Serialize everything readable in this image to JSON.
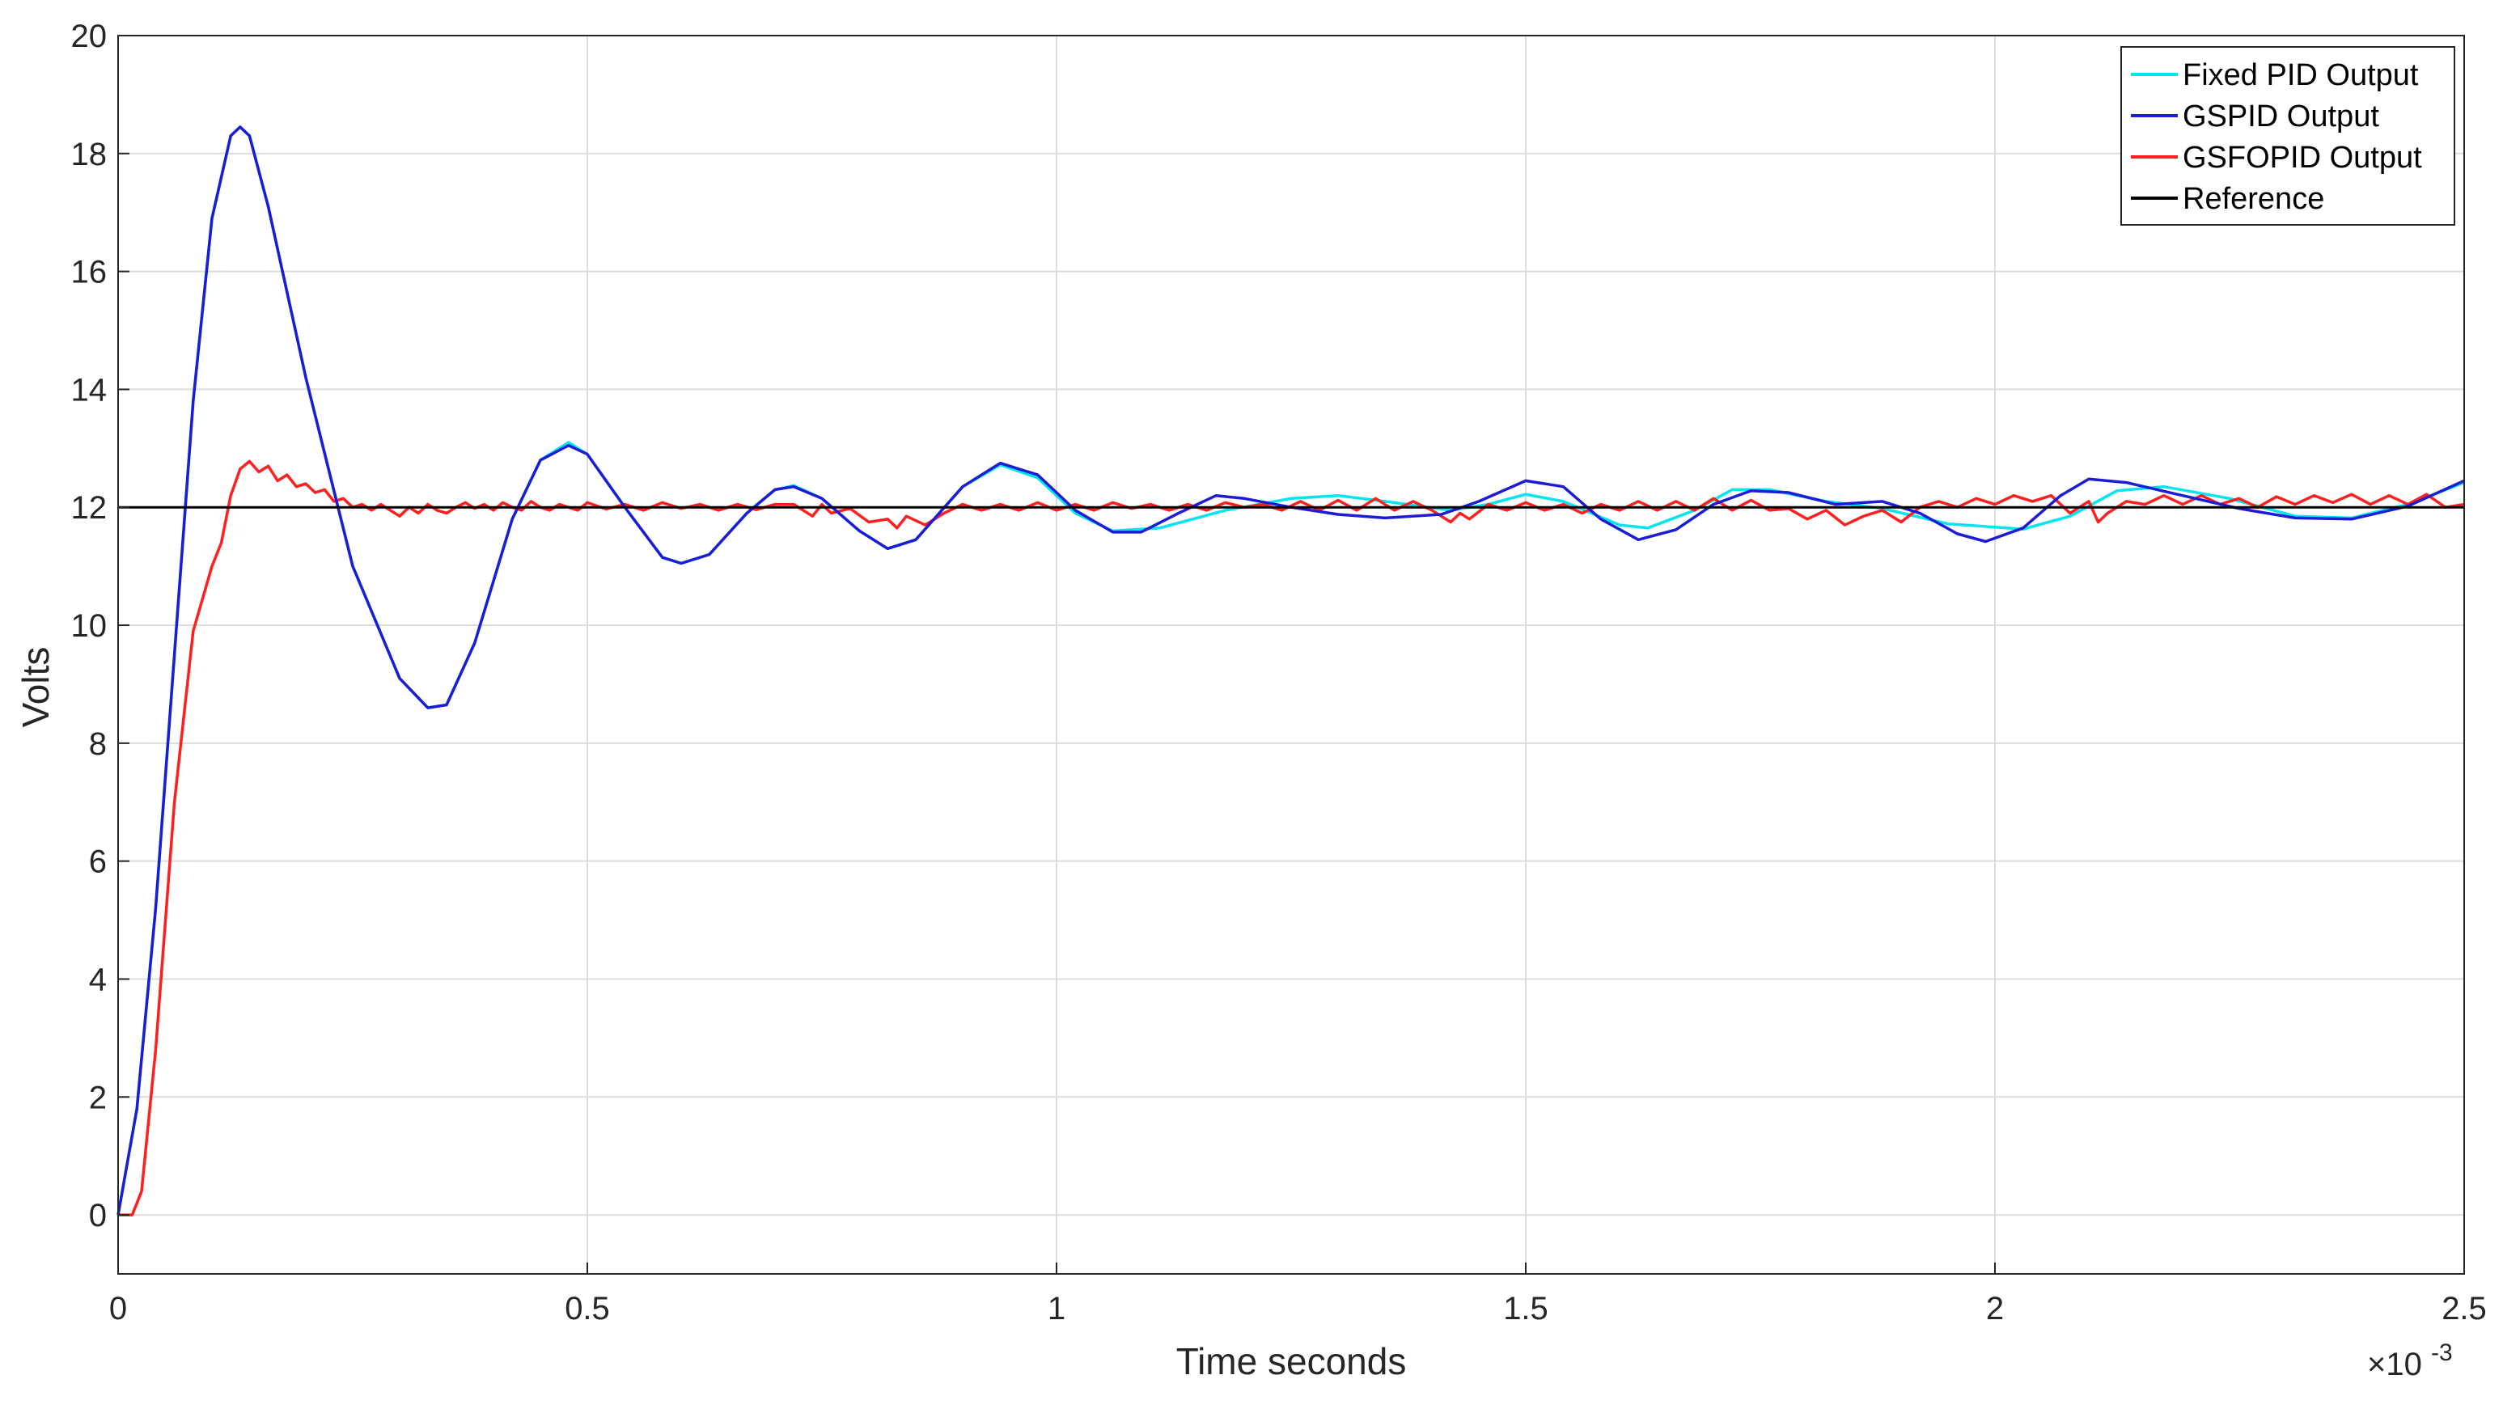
{
  "chart_data": {
    "type": "line",
    "title": "",
    "xlabel": "Time seconds",
    "ylabel": "Volts",
    "x_exponent_label": "×10",
    "x_exponent_power": "-3",
    "xlim": [
      0,
      0.0025
    ],
    "ylim": [
      -1,
      20
    ],
    "x_ticks": [
      0,
      0.0005,
      0.001,
      0.0015,
      0.002,
      0.0025
    ],
    "x_tick_labels": [
      "0",
      "0.5",
      "1",
      "1.5",
      "2",
      "2.5"
    ],
    "y_ticks": [
      0,
      2,
      4,
      6,
      8,
      10,
      12,
      14,
      16,
      18,
      20
    ],
    "y_tick_labels": [
      "0",
      "2",
      "4",
      "6",
      "8",
      "10",
      "12",
      "14",
      "16",
      "18",
      "20"
    ],
    "grid": true,
    "legend_position": "top-right",
    "series": [
      {
        "name": "Fixed PID Output",
        "color": "#00e5ee",
        "points": [
          [
            0,
            0
          ],
          [
            2e-05,
            1.8
          ],
          [
            4e-05,
            5.2
          ],
          [
            6e-05,
            9.5
          ],
          [
            8e-05,
            13.8
          ],
          [
            0.0001,
            16.9
          ],
          [
            0.00012,
            18.3
          ],
          [
            0.00013,
            18.45
          ],
          [
            0.00014,
            18.3
          ],
          [
            0.00016,
            17.1
          ],
          [
            0.0002,
            14.2
          ],
          [
            0.00025,
            11.0
          ],
          [
            0.0003,
            9.1
          ],
          [
            0.00033,
            8.6
          ],
          [
            0.00035,
            8.65
          ],
          [
            0.00038,
            9.7
          ],
          [
            0.00042,
            11.8
          ],
          [
            0.00045,
            12.8
          ],
          [
            0.00048,
            13.1
          ],
          [
            0.0005,
            12.9
          ],
          [
            0.00054,
            12.0
          ],
          [
            0.00058,
            11.15
          ],
          [
            0.0006,
            11.05
          ],
          [
            0.00063,
            11.2
          ],
          [
            0.00067,
            11.9
          ],
          [
            0.0007,
            12.3
          ],
          [
            0.00072,
            12.37
          ],
          [
            0.00075,
            12.15
          ],
          [
            0.00079,
            11.6
          ],
          [
            0.00082,
            11.3
          ],
          [
            0.00085,
            11.45
          ],
          [
            0.0009,
            12.35
          ],
          [
            0.00094,
            12.72
          ],
          [
            0.00098,
            12.5
          ],
          [
            0.00102,
            11.9
          ],
          [
            0.00106,
            11.6
          ],
          [
            0.00111,
            11.65
          ],
          [
            0.00118,
            11.95
          ],
          [
            0.00125,
            12.15
          ],
          [
            0.0013,
            12.2
          ],
          [
            0.00135,
            12.1
          ],
          [
            0.00142,
            11.95
          ],
          [
            0.00146,
            12.05
          ],
          [
            0.0015,
            12.22
          ],
          [
            0.00154,
            12.1
          ],
          [
            0.0016,
            11.7
          ],
          [
            0.00163,
            11.65
          ],
          [
            0.00168,
            11.95
          ],
          [
            0.00172,
            12.3
          ],
          [
            0.00176,
            12.3
          ],
          [
            0.00182,
            12.1
          ],
          [
            0.00188,
            11.98
          ],
          [
            0.00195,
            11.72
          ],
          [
            0.00203,
            11.63
          ],
          [
            0.00208,
            11.85
          ],
          [
            0.00213,
            12.28
          ],
          [
            0.00218,
            12.35
          ],
          [
            0.00225,
            12.15
          ],
          [
            0.00232,
            11.85
          ],
          [
            0.00238,
            11.82
          ],
          [
            0.00244,
            12.05
          ],
          [
            0.0025,
            12.42
          ]
        ]
      },
      {
        "name": "GSPID Output",
        "color": "#1c1cd6",
        "points": [
          [
            0,
            0
          ],
          [
            2e-05,
            1.8
          ],
          [
            4e-05,
            5.2
          ],
          [
            6e-05,
            9.5
          ],
          [
            8e-05,
            13.8
          ],
          [
            0.0001,
            16.9
          ],
          [
            0.00012,
            18.3
          ],
          [
            0.00013,
            18.45
          ],
          [
            0.00014,
            18.3
          ],
          [
            0.00016,
            17.1
          ],
          [
            0.0002,
            14.2
          ],
          [
            0.00025,
            11.0
          ],
          [
            0.0003,
            9.1
          ],
          [
            0.00033,
            8.6
          ],
          [
            0.00035,
            8.65
          ],
          [
            0.00038,
            9.7
          ],
          [
            0.00042,
            11.8
          ],
          [
            0.00045,
            12.8
          ],
          [
            0.00048,
            13.05
          ],
          [
            0.0005,
            12.9
          ],
          [
            0.00054,
            12.0
          ],
          [
            0.00058,
            11.15
          ],
          [
            0.0006,
            11.05
          ],
          [
            0.00063,
            11.2
          ],
          [
            0.00067,
            11.9
          ],
          [
            0.0007,
            12.3
          ],
          [
            0.00072,
            12.35
          ],
          [
            0.00075,
            12.15
          ],
          [
            0.00079,
            11.6
          ],
          [
            0.00082,
            11.3
          ],
          [
            0.00085,
            11.45
          ],
          [
            0.0009,
            12.35
          ],
          [
            0.00094,
            12.75
          ],
          [
            0.00098,
            12.55
          ],
          [
            0.00102,
            11.95
          ],
          [
            0.00106,
            11.58
          ],
          [
            0.00109,
            11.58
          ],
          [
            0.00113,
            11.9
          ],
          [
            0.00117,
            12.2
          ],
          [
            0.0012,
            12.15
          ],
          [
            0.00125,
            12.0
          ],
          [
            0.0013,
            11.88
          ],
          [
            0.00135,
            11.82
          ],
          [
            0.00141,
            11.88
          ],
          [
            0.00145,
            12.1
          ],
          [
            0.0015,
            12.45
          ],
          [
            0.00154,
            12.35
          ],
          [
            0.00158,
            11.8
          ],
          [
            0.00162,
            11.45
          ],
          [
            0.00166,
            11.62
          ],
          [
            0.0017,
            12.05
          ],
          [
            0.00174,
            12.28
          ],
          [
            0.00178,
            12.25
          ],
          [
            0.00183,
            12.05
          ],
          [
            0.00188,
            12.1
          ],
          [
            0.00192,
            11.9
          ],
          [
            0.00196,
            11.55
          ],
          [
            0.00199,
            11.42
          ],
          [
            0.00203,
            11.65
          ],
          [
            0.00207,
            12.2
          ],
          [
            0.0021,
            12.48
          ],
          [
            0.00214,
            12.42
          ],
          [
            0.0022,
            12.2
          ],
          [
            0.00226,
            11.98
          ],
          [
            0.00232,
            11.82
          ],
          [
            0.00238,
            11.8
          ],
          [
            0.00244,
            12.02
          ],
          [
            0.0025,
            12.45
          ]
        ]
      },
      {
        "name": "GSFOPID Output",
        "color": "#ff1f1f",
        "points": [
          [
            0,
            0
          ],
          [
            1.5e-05,
            0
          ],
          [
            2.5e-05,
            0.4
          ],
          [
            4e-05,
            2.8
          ],
          [
            6e-05,
            7.0
          ],
          [
            8e-05,
            9.9
          ],
          [
            0.0001,
            11.0
          ],
          [
            0.00011,
            11.4
          ],
          [
            0.00012,
            12.2
          ],
          [
            0.00013,
            12.65
          ],
          [
            0.00014,
            12.78
          ],
          [
            0.00015,
            12.6
          ],
          [
            0.00016,
            12.7
          ],
          [
            0.00017,
            12.45
          ],
          [
            0.00018,
            12.55
          ],
          [
            0.00019,
            12.35
          ],
          [
            0.0002,
            12.4
          ],
          [
            0.00021,
            12.25
          ],
          [
            0.00022,
            12.3
          ],
          [
            0.00023,
            12.1
          ],
          [
            0.00024,
            12.15
          ],
          [
            0.00025,
            12.0
          ],
          [
            0.00026,
            12.05
          ],
          [
            0.00027,
            11.95
          ],
          [
            0.00028,
            12.05
          ],
          [
            0.00029,
            11.95
          ],
          [
            0.0003,
            11.85
          ],
          [
            0.00031,
            12.0
          ],
          [
            0.00032,
            11.9
          ],
          [
            0.00033,
            12.05
          ],
          [
            0.00034,
            11.95
          ],
          [
            0.00035,
            11.9
          ],
          [
            0.00036,
            12.0
          ],
          [
            0.00037,
            12.08
          ],
          [
            0.00038,
            11.98
          ],
          [
            0.00039,
            12.05
          ],
          [
            0.0004,
            11.95
          ],
          [
            0.00041,
            12.08
          ],
          [
            0.00042,
            12.0
          ],
          [
            0.00043,
            11.95
          ],
          [
            0.00044,
            12.1
          ],
          [
            0.00045,
            12.0
          ],
          [
            0.00046,
            11.95
          ],
          [
            0.00047,
            12.05
          ],
          [
            0.00048,
            12.0
          ],
          [
            0.00049,
            11.95
          ],
          [
            0.0005,
            12.08
          ],
          [
            0.00052,
            11.97
          ],
          [
            0.00054,
            12.05
          ],
          [
            0.00056,
            11.95
          ],
          [
            0.00058,
            12.08
          ],
          [
            0.0006,
            11.98
          ],
          [
            0.00062,
            12.05
          ],
          [
            0.00064,
            11.95
          ],
          [
            0.00066,
            12.05
          ],
          [
            0.00068,
            11.96
          ],
          [
            0.0007,
            12.05
          ],
          [
            0.00072,
            12.05
          ],
          [
            0.00074,
            11.85
          ],
          [
            0.00075,
            12.05
          ],
          [
            0.00076,
            11.9
          ],
          [
            0.00078,
            11.98
          ],
          [
            0.0008,
            11.75
          ],
          [
            0.00082,
            11.8
          ],
          [
            0.00083,
            11.65
          ],
          [
            0.00084,
            11.85
          ],
          [
            0.00086,
            11.7
          ],
          [
            0.00088,
            11.9
          ],
          [
            0.0009,
            12.05
          ],
          [
            0.00092,
            11.95
          ],
          [
            0.00094,
            12.05
          ],
          [
            0.00096,
            11.95
          ],
          [
            0.00098,
            12.08
          ],
          [
            0.001,
            11.95
          ],
          [
            0.00102,
            12.05
          ],
          [
            0.00104,
            11.95
          ],
          [
            0.00106,
            12.08
          ],
          [
            0.00108,
            11.98
          ],
          [
            0.0011,
            12.05
          ],
          [
            0.00112,
            11.95
          ],
          [
            0.00114,
            12.05
          ],
          [
            0.00116,
            11.95
          ],
          [
            0.00118,
            12.08
          ],
          [
            0.0012,
            12.0
          ],
          [
            0.00122,
            12.05
          ],
          [
            0.00124,
            11.95
          ],
          [
            0.00126,
            12.1
          ],
          [
            0.00128,
            11.95
          ],
          [
            0.0013,
            12.12
          ],
          [
            0.00132,
            11.95
          ],
          [
            0.00134,
            12.15
          ],
          [
            0.00136,
            11.95
          ],
          [
            0.00138,
            12.1
          ],
          [
            0.0014,
            11.95
          ],
          [
            0.00142,
            11.75
          ],
          [
            0.00143,
            11.9
          ],
          [
            0.00144,
            11.8
          ],
          [
            0.00146,
            12.05
          ],
          [
            0.00148,
            11.95
          ],
          [
            0.0015,
            12.08
          ],
          [
            0.00152,
            11.95
          ],
          [
            0.00154,
            12.05
          ],
          [
            0.00156,
            11.9
          ],
          [
            0.00158,
            12.05
          ],
          [
            0.0016,
            11.95
          ],
          [
            0.00162,
            12.1
          ],
          [
            0.00164,
            11.95
          ],
          [
            0.00166,
            12.1
          ],
          [
            0.00168,
            11.95
          ],
          [
            0.0017,
            12.15
          ],
          [
            0.00172,
            11.95
          ],
          [
            0.00174,
            12.12
          ],
          [
            0.00176,
            11.95
          ],
          [
            0.00178,
            11.98
          ],
          [
            0.0018,
            11.8
          ],
          [
            0.00182,
            11.95
          ],
          [
            0.00184,
            11.7
          ],
          [
            0.00186,
            11.85
          ],
          [
            0.00188,
            11.95
          ],
          [
            0.0019,
            11.75
          ],
          [
            0.00192,
            12.0
          ],
          [
            0.00194,
            12.1
          ],
          [
            0.00196,
            12.0
          ],
          [
            0.00198,
            12.15
          ],
          [
            0.002,
            12.05
          ],
          [
            0.00202,
            12.2
          ],
          [
            0.00204,
            12.1
          ],
          [
            0.00206,
            12.2
          ],
          [
            0.00208,
            11.9
          ],
          [
            0.0021,
            12.1
          ],
          [
            0.00211,
            11.75
          ],
          [
            0.00212,
            11.9
          ],
          [
            0.00214,
            12.1
          ],
          [
            0.00216,
            12.05
          ],
          [
            0.00218,
            12.2
          ],
          [
            0.0022,
            12.05
          ],
          [
            0.00222,
            12.2
          ],
          [
            0.00224,
            12.05
          ],
          [
            0.00226,
            12.15
          ],
          [
            0.00228,
            12.0
          ],
          [
            0.0023,
            12.18
          ],
          [
            0.00232,
            12.05
          ],
          [
            0.00234,
            12.2
          ],
          [
            0.00236,
            12.08
          ],
          [
            0.00238,
            12.22
          ],
          [
            0.0024,
            12.05
          ],
          [
            0.00242,
            12.2
          ],
          [
            0.00244,
            12.05
          ],
          [
            0.00246,
            12.22
          ],
          [
            0.00248,
            12.0
          ],
          [
            0.0025,
            12.05
          ]
        ]
      },
      {
        "name": "Reference",
        "color": "#000000",
        "points": [
          [
            0,
            12
          ],
          [
            0.0025,
            12
          ]
        ]
      }
    ]
  }
}
